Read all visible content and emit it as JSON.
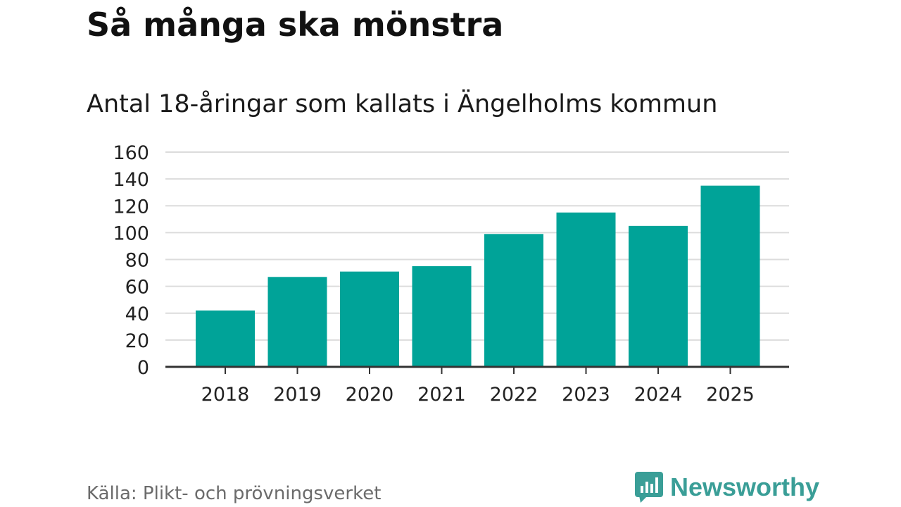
{
  "header": {
    "title": "Så många ska mönstra",
    "subtitle": "Antal 18-åringar som kallats i Ängelholms kommun"
  },
  "footer": {
    "source": "Källa: Plikt- och prövningsverket",
    "brand": "Newsworthy",
    "brand_icon": "bar-chart-speech-bubble-icon"
  },
  "colors": {
    "bar": "#00a398",
    "grid": "#dcdcdc",
    "axis": "#333333",
    "brand": "#3a9e97"
  },
  "chart_data": {
    "type": "bar",
    "categories": [
      "2018",
      "2019",
      "2020",
      "2021",
      "2022",
      "2023",
      "2024",
      "2025"
    ],
    "values": [
      42,
      67,
      71,
      75,
      99,
      115,
      105,
      135
    ],
    "ylim": [
      0,
      160
    ],
    "yticks": [
      0,
      20,
      40,
      60,
      80,
      100,
      120,
      140,
      160
    ],
    "grid": true,
    "legend": "none"
  }
}
